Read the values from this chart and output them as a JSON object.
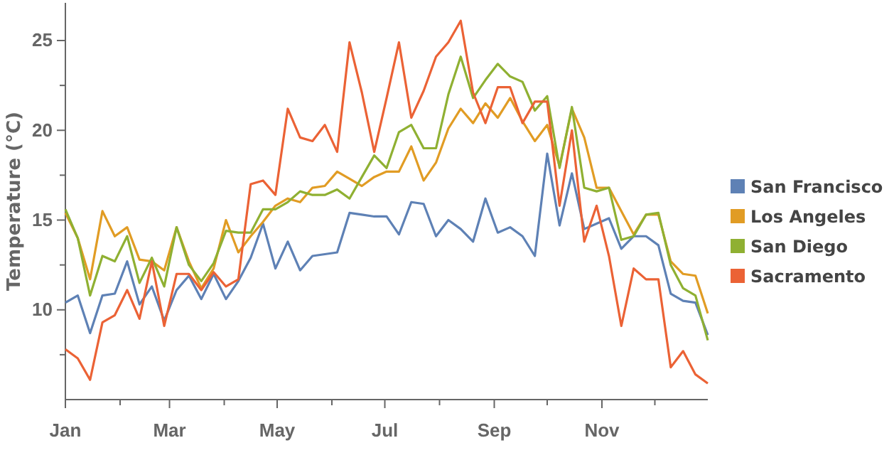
{
  "chart_data": {
    "type": "line",
    "ylabel": "Temperature (°C)",
    "x": [
      "--01-01",
      "--01-08",
      "--01-15",
      "--01-22",
      "--01-29",
      "--02-05",
      "--02-12",
      "--02-19",
      "--02-26",
      "--03-05",
      "--03-12",
      "--03-19",
      "--03-26",
      "--04-02",
      "--04-09",
      "--04-16",
      "--04-23",
      "--04-30",
      "--05-07",
      "--05-14",
      "--05-21",
      "--05-28",
      "--06-04",
      "--06-11",
      "--06-18",
      "--06-25",
      "--07-02",
      "--07-09",
      "--07-16",
      "--07-23",
      "--07-30",
      "--08-06",
      "--08-13",
      "--08-20",
      "--08-27",
      "--09-03",
      "--09-10",
      "--09-17",
      "--09-24",
      "--10-01",
      "--10-08",
      "--10-15",
      "--10-22",
      "--10-29",
      "--11-05",
      "--11-12",
      "--11-19",
      "--11-26",
      "--12-03",
      "--12-10",
      "--12-17",
      "--12-24",
      "--12-31"
    ],
    "series": [
      {
        "name": "San Francisco",
        "color": "#5e81b5",
        "values": [
          10.4,
          10.8,
          8.7,
          10.8,
          10.9,
          12.7,
          10.3,
          11.3,
          9.4,
          11.1,
          11.9,
          10.6,
          12.0,
          10.6,
          11.6,
          12.9,
          14.8,
          12.3,
          13.8,
          12.2,
          13.0,
          13.1,
          13.2,
          15.4,
          15.3,
          15.2,
          15.2,
          14.2,
          16.0,
          15.9,
          14.1,
          15.0,
          14.5,
          13.8,
          16.2,
          14.3,
          14.6,
          14.1,
          13.0,
          18.7,
          14.7,
          17.6,
          14.5,
          14.8,
          15.1,
          13.4,
          14.1,
          14.1,
          13.6,
          10.9,
          10.5,
          10.4,
          8.6
        ]
      },
      {
        "name": "Los Angeles",
        "color": "#e19c24",
        "values": [
          15.4,
          14.0,
          11.7,
          15.5,
          14.1,
          14.6,
          12.8,
          12.7,
          12.2,
          14.6,
          12.7,
          11.2,
          12.3,
          15.0,
          13.2,
          14.1,
          14.9,
          15.8,
          16.2,
          16.0,
          16.8,
          16.9,
          17.7,
          17.3,
          16.9,
          17.4,
          17.7,
          17.7,
          19.1,
          17.2,
          18.2,
          20.1,
          21.2,
          20.4,
          21.5,
          20.7,
          21.8,
          20.5,
          19.4,
          20.3,
          18.0,
          21.2,
          19.6,
          16.8,
          16.8,
          15.5,
          14.2,
          15.3,
          15.3,
          12.7,
          12.0,
          11.9,
          9.8
        ]
      },
      {
        "name": "San Diego",
        "color": "#8fb032",
        "values": [
          15.6,
          14.0,
          10.8,
          13.0,
          12.7,
          14.1,
          11.5,
          12.9,
          11.3,
          14.6,
          12.5,
          11.6,
          12.6,
          14.4,
          14.3,
          14.3,
          15.6,
          15.6,
          16.0,
          16.6,
          16.4,
          16.4,
          16.7,
          16.2,
          17.4,
          18.6,
          17.9,
          19.9,
          20.3,
          19.0,
          19.0,
          22.0,
          24.1,
          21.8,
          22.8,
          23.7,
          23.0,
          22.7,
          21.1,
          21.9,
          17.9,
          21.3,
          16.8,
          16.6,
          16.8,
          13.9,
          14.1,
          15.3,
          15.4,
          12.5,
          11.2,
          10.8,
          8.3
        ]
      },
      {
        "name": "Sacramento",
        "color": "#eb6235",
        "values": [
          7.8,
          7.3,
          6.1,
          9.3,
          9.7,
          11.1,
          9.5,
          12.7,
          9.1,
          12.0,
          12.0,
          11.1,
          12.1,
          11.3,
          11.7,
          17.0,
          17.2,
          16.4,
          21.2,
          19.6,
          19.4,
          20.3,
          18.8,
          24.9,
          22.1,
          18.8,
          21.8,
          24.9,
          20.7,
          22.2,
          24.1,
          24.9,
          26.1,
          22.1,
          20.4,
          22.4,
          22.4,
          20.4,
          21.6,
          21.6,
          15.8,
          20.0,
          13.8,
          15.8,
          13.0,
          9.1,
          12.3,
          11.7,
          11.7,
          6.8,
          7.7,
          6.4,
          5.9
        ]
      }
    ],
    "xlim": [
      "--01-01",
      "--12-31"
    ],
    "xticks": [
      {
        "value": "--01-01",
        "label": "Jan"
      },
      {
        "value": "--02-01",
        "label": null
      },
      {
        "value": "--03-01",
        "label": "Mar"
      },
      {
        "value": "--04-01",
        "label": null
      },
      {
        "value": "--05-01",
        "label": "May"
      },
      {
        "value": "--06-01",
        "label": null
      },
      {
        "value": "--07-01",
        "label": "Jul"
      },
      {
        "value": "--08-01",
        "label": null
      },
      {
        "value": "--09-01",
        "label": "Sep"
      },
      {
        "value": "--10-01",
        "label": null
      },
      {
        "value": "--11-01",
        "label": "Nov"
      },
      {
        "value": "--12-01",
        "label": null
      }
    ],
    "ylim": [
      5,
      27.1
    ],
    "yticks": [
      {
        "value": 7.5,
        "label": null
      },
      10,
      {
        "value": 12.5,
        "label": null
      },
      15,
      {
        "value": 17.5,
        "label": null
      },
      20,
      {
        "value": 22.5,
        "label": null
      },
      25
    ],
    "legend": "right",
    "line_style": "solid",
    "marker": "none"
  }
}
